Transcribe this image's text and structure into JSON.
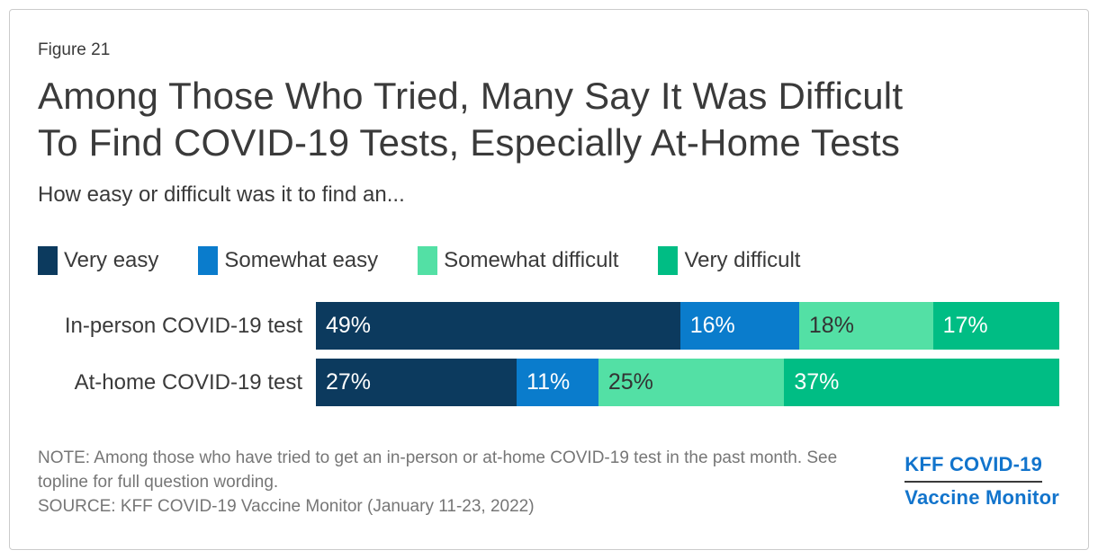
{
  "figure_label": "Figure 21",
  "title_lines": [
    "Among Those Who Tried, Many Say It Was Difficult",
    "To Find COVID-19 Tests, Especially At-Home Tests"
  ],
  "subtitle": "How easy or difficult was it to find an...",
  "chart_data": {
    "type": "bar",
    "orientation": "horizontal",
    "stacked": true,
    "value_suffix": "%",
    "xlim": [
      0,
      100
    ],
    "grid": false,
    "legend_position": "top",
    "categories": [
      "In-person COVID-19 test",
      "At-home COVID-19 test"
    ],
    "series": [
      {
        "name": "Very easy",
        "color": "#0c3a5e",
        "label_text_color": "#ffffff",
        "values": [
          49,
          27
        ]
      },
      {
        "name": "Somewhat easy",
        "color": "#0a7ccc",
        "label_text_color": "#ffffff",
        "values": [
          16,
          11
        ]
      },
      {
        "name": "Somewhat difficult",
        "color": "#53e0a5",
        "label_text_color": "#333333",
        "values": [
          18,
          25
        ]
      },
      {
        "name": "Very difficult",
        "color": "#00bd84",
        "label_text_color": "#ffffff",
        "values": [
          17,
          37
        ]
      }
    ]
  },
  "note": "NOTE: Among those who have tried to get an in-person or at-home COVID-19 test in the past month. See topline for full question wording.",
  "source": "SOURCE: KFF COVID-19 Vaccine Monitor (January 11-23, 2022)",
  "logo": {
    "line1": "KFF COVID-19",
    "line2": "Vaccine Monitor",
    "color": "#1274cc"
  }
}
